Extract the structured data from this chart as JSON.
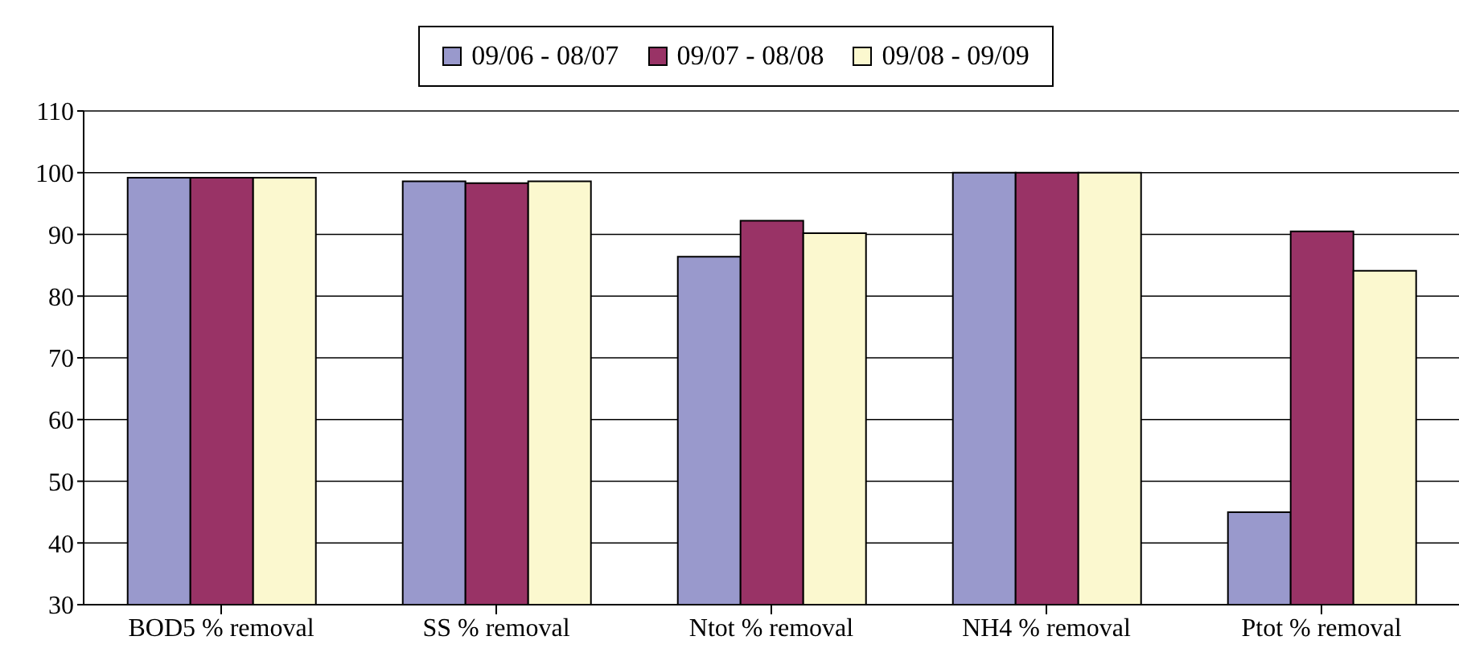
{
  "chart_data": {
    "type": "bar",
    "categories": [
      "BOD5 % removal",
      "SS % removal",
      "Ntot % removal",
      "NH4 % removal",
      "Ptot % removal"
    ],
    "series": [
      {
        "name": "09/06 - 08/07",
        "color": "#9999cc",
        "values": [
          99.2,
          98.6,
          86.4,
          100,
          45
        ]
      },
      {
        "name": "09/07 - 08/08",
        "color": "#993366",
        "values": [
          99.2,
          98.3,
          92.2,
          100,
          90.5
        ]
      },
      {
        "name": "09/08 - 09/09",
        "color": "#fbf8cf",
        "values": [
          99.2,
          98.6,
          90.2,
          100,
          84.1
        ]
      }
    ],
    "ylim": [
      30,
      110
    ],
    "yticks": [
      30,
      40,
      50,
      60,
      70,
      80,
      90,
      100,
      110
    ],
    "grid": "y",
    "legend": "top"
  }
}
